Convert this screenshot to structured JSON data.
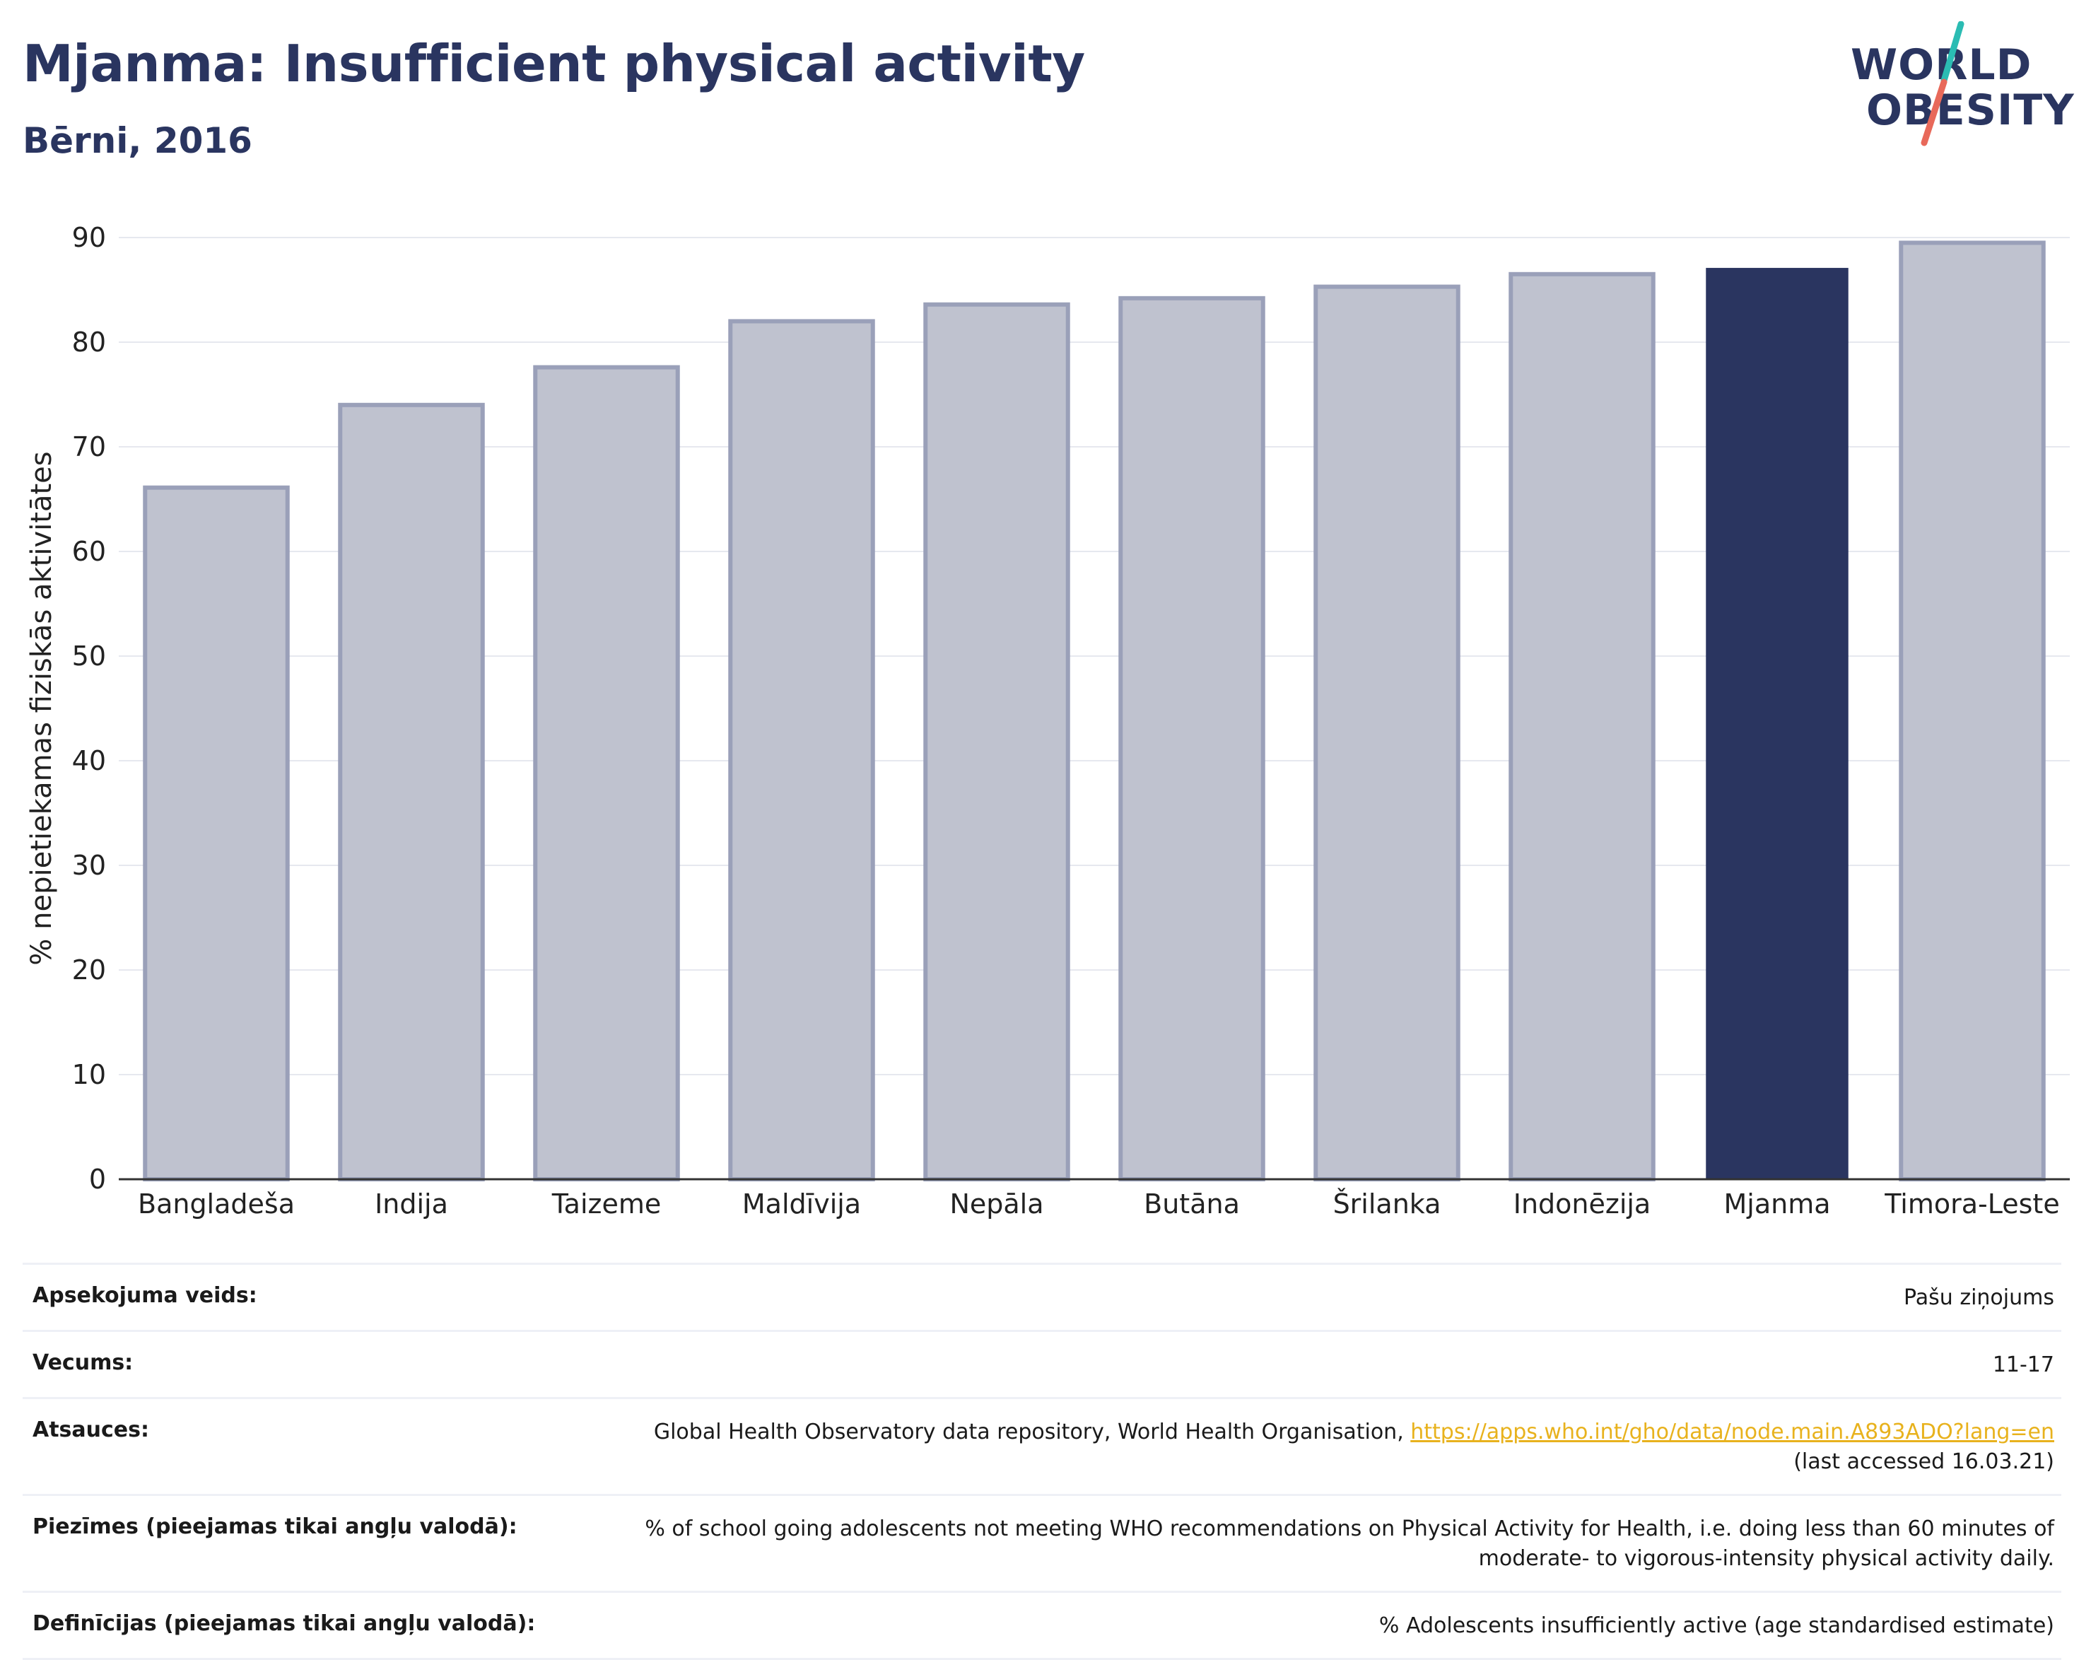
{
  "header": {
    "title": "Mjanma: Insufficient physical activity",
    "subtitle": "Bērni, 2016"
  },
  "logo": {
    "line1": "WORLD",
    "line2": "OBESITY",
    "slash_colors": [
      "#2bbcb3",
      "#e8695a"
    ]
  },
  "colors": {
    "bar_default": "#bfc2cf",
    "bar_border": "#9aa0b9",
    "bar_highlight": "#2a3560",
    "grid": "#e6e8ef",
    "link": "#e8b21d"
  },
  "chart_data": {
    "type": "bar",
    "ylabel": "% nepietiekamas fiziskās aktivitātes",
    "ylim": [
      0,
      90
    ],
    "yticks": [
      0,
      10,
      20,
      30,
      40,
      50,
      60,
      70,
      80,
      90
    ],
    "grid": true,
    "highlight": "Mjanma",
    "categories": [
      "Bangladeša",
      "Indija",
      "Taizeme",
      "Maldīvija",
      "Nepāla",
      "Butāna",
      "Šrilanka",
      "Indonēzija",
      "Mjanma",
      "Timora-Leste"
    ],
    "values": [
      66.1,
      74.0,
      77.6,
      82.0,
      83.6,
      84.2,
      85.3,
      86.5,
      87.1,
      89.5
    ]
  },
  "meta": [
    {
      "key": "Apsekojuma veids:",
      "value": "Pašu ziņojums"
    },
    {
      "key": "Vecums:",
      "value": "11-17"
    },
    {
      "key": "Atsauces:",
      "value_pre": "Global Health Observatory data repository, World Health Organisation, ",
      "link": "https://apps.who.int/gho/data/node.main.A893ADO?lang=en",
      "value_post": "(last accessed 16.03.21)"
    },
    {
      "key": "Piezīmes (pieejamas tikai angļu valodā):",
      "value": "% of school going adolescents not meeting WHO recommendations on Physical Activity for Health, i.e. doing less than 60 minutes of moderate- to vigorous-intensity physical activity daily."
    },
    {
      "key": "Definīcijas (pieejamas tikai angļu valodā):",
      "value": "% Adolescents insufficiently active (age standardised estimate)"
    }
  ]
}
